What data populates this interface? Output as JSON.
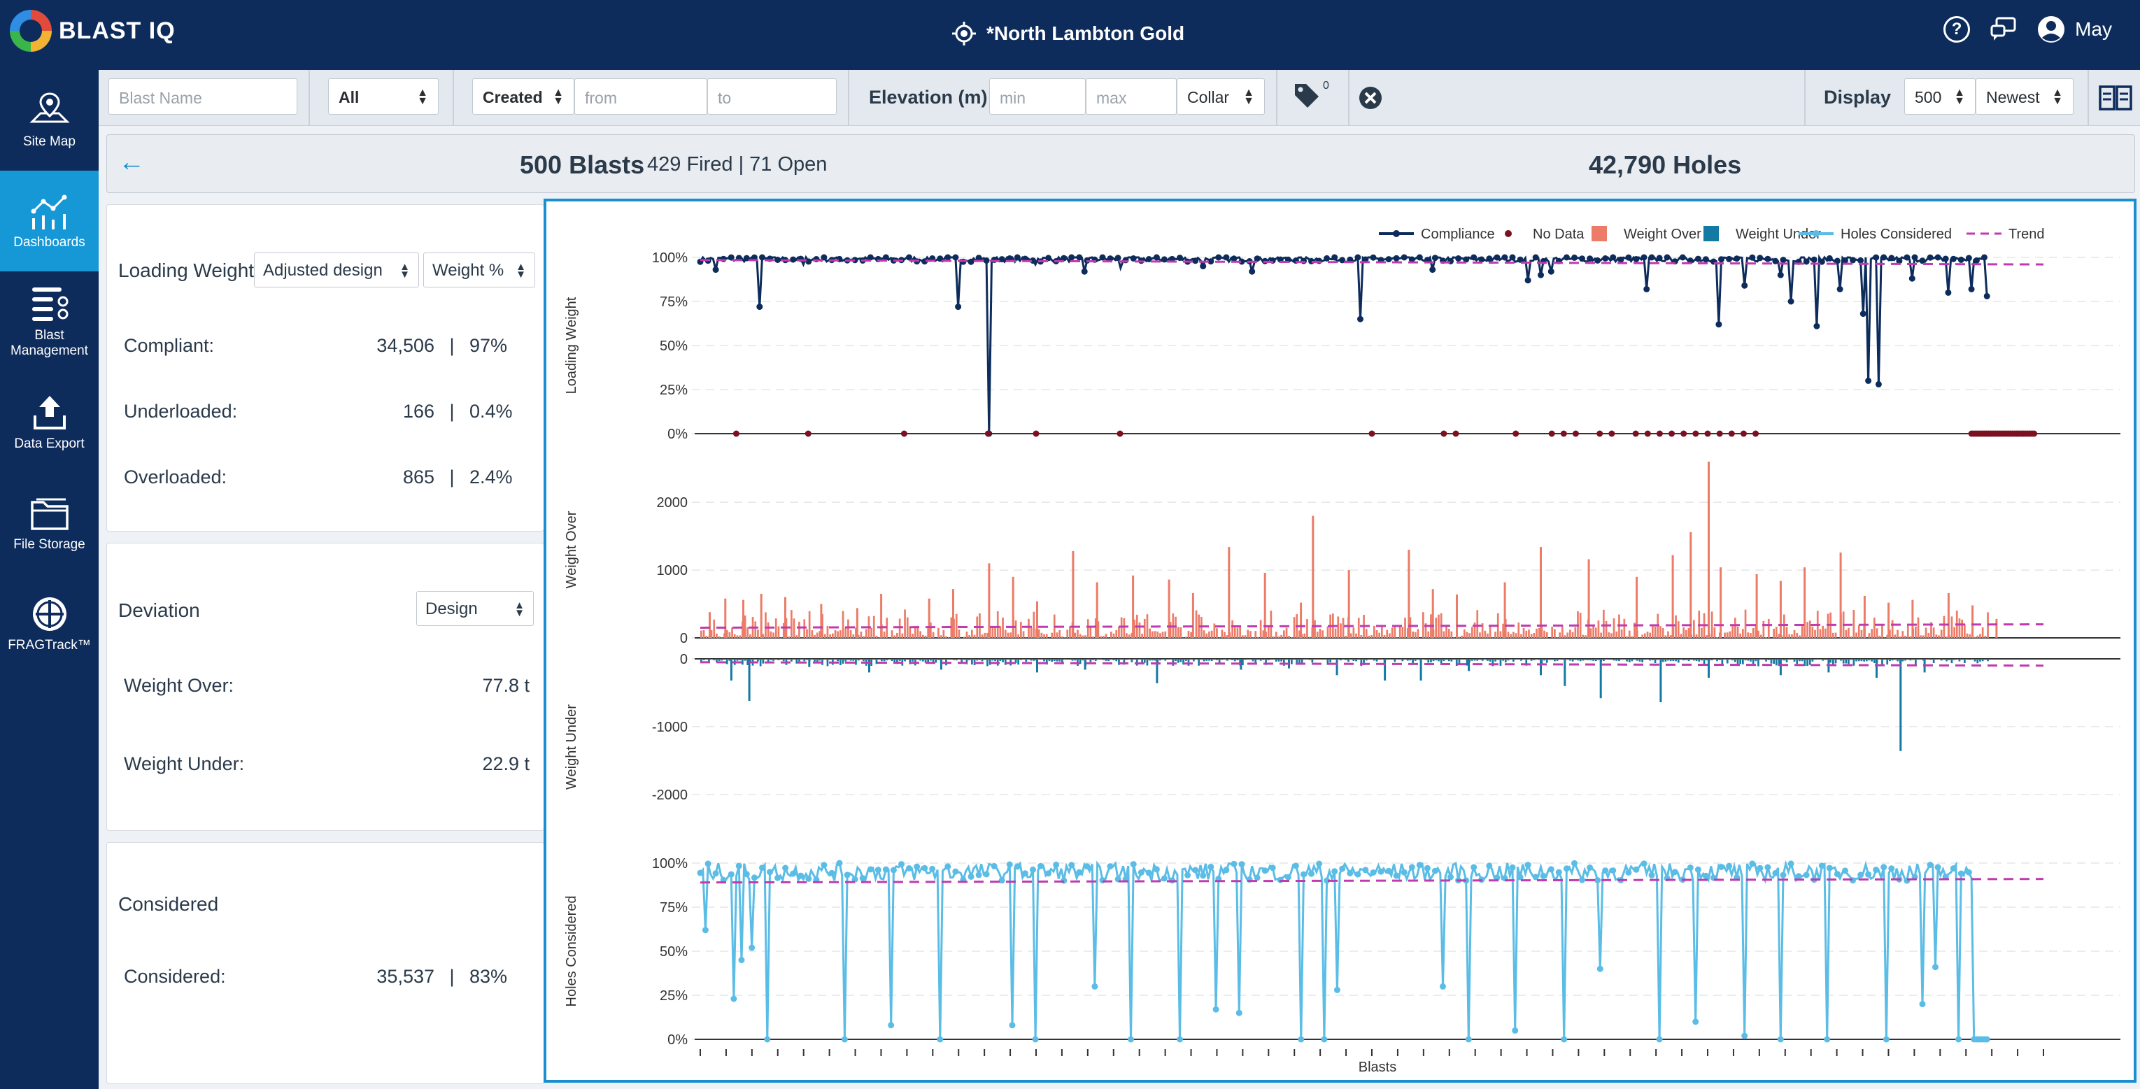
{
  "header": {
    "logo_text": "BLAST IQ",
    "site_name": "*North Lambton Gold",
    "user_name": "May",
    "help_icon": "question-circle-icon",
    "chat_icon": "chat-icon",
    "user_icon": "user-circle-icon",
    "location_icon": "crosshair-icon"
  },
  "sidebar": {
    "items": [
      {
        "label": "Site Map",
        "icon": "map-pin-icon"
      },
      {
        "label": "Dashboards",
        "icon": "dashboard-chart-icon",
        "active": true
      },
      {
        "label": "Blast Management",
        "icon": "list-settings-icon"
      },
      {
        "label": "Data Export",
        "icon": "upload-icon"
      },
      {
        "label": "File Storage",
        "icon": "folder-icon"
      },
      {
        "label": "FRAGTrack™",
        "icon": "fragtrack-icon"
      }
    ]
  },
  "filters": {
    "blast_name_placeholder": "Blast Name",
    "status_value": "All",
    "date_type": "Created",
    "from_placeholder": "from",
    "to_placeholder": "to",
    "elevation_label": "Elevation (m)",
    "min_placeholder": "min",
    "max_placeholder": "max",
    "elevation_ref": "Collar",
    "tag_count": "0",
    "display_label": "Display",
    "display_count": "500",
    "sort_value": "Newest"
  },
  "summary": {
    "blasts": "500 Blasts",
    "fired_open": "429 Fired | 71 Open",
    "holes": "42,790 Holes"
  },
  "loading_card": {
    "title": "Loading Weight",
    "design_select": "Adjusted design",
    "unit_select": "Weight %",
    "rows": [
      {
        "label": "Compliant:",
        "value": "34,506",
        "sep": "|",
        "pct": "97%"
      },
      {
        "label": "Underloaded:",
        "value": "166",
        "sep": "|",
        "pct": "0.4%"
      },
      {
        "label": "Overloaded:",
        "value": "865",
        "sep": "|",
        "pct": "2.4%"
      }
    ]
  },
  "deviation_card": {
    "title": "Deviation",
    "select": "Design",
    "rows": [
      {
        "label": "Weight Over:",
        "value": "77.8 t"
      },
      {
        "label": "Weight Under:",
        "value": "22.9 t"
      }
    ]
  },
  "considered_card": {
    "title": "Considered",
    "row": {
      "label": "Considered:",
      "value": "35,537",
      "sep": "|",
      "pct": "83%"
    }
  },
  "chart_data": {
    "type": "line",
    "xlabel": "Blasts",
    "legend": [
      "Compliance",
      "No Data",
      "Weight Over",
      "Weight Under",
      "Holes Considered",
      "Trend"
    ],
    "legend_position": "top-right",
    "colors": {
      "compliance": "#0d2c5c",
      "no_data": "#7a1020",
      "weight_over": "#ec7b67",
      "weight_under": "#1479a3",
      "holes_considered": "#5bbde6",
      "trend": "#c03ab0"
    },
    "grid": true,
    "panels": [
      {
        "ylabel": "Loading Weight",
        "yticks": [
          "100%",
          "75%",
          "50%",
          "25%",
          "0%"
        ],
        "ylim": [
          0,
          100
        ],
        "trend": [
          98.5,
          96
        ],
        "dips": [
          [
            0.013,
            93
          ],
          [
            0.05,
            72
          ],
          [
            0.085,
            96
          ],
          [
            0.24,
            0
          ],
          [
            0.215,
            72
          ],
          [
            0.28,
            96
          ],
          [
            0.32,
            92
          ],
          [
            0.35,
            94
          ],
          [
            0.42,
            95
          ],
          [
            0.46,
            92
          ],
          [
            0.55,
            65
          ],
          [
            0.61,
            93
          ],
          [
            0.69,
            87
          ],
          [
            0.71,
            92
          ],
          [
            0.7,
            90
          ],
          [
            0.79,
            82
          ],
          [
            0.85,
            62
          ],
          [
            0.87,
            84
          ],
          [
            0.91,
            75
          ],
          [
            0.93,
            61
          ],
          [
            0.97,
            68
          ],
          [
            0.975,
            30
          ],
          [
            0.982,
            28
          ],
          [
            0.9,
            90
          ],
          [
            0.95,
            82
          ],
          [
            1.01,
            88
          ],
          [
            1.04,
            80
          ],
          [
            1.06,
            82
          ],
          [
            1.1,
            86
          ],
          [
            1.12,
            78
          ]
        ],
        "no_data_x": [
          0.03,
          0.09,
          0.17,
          0.24,
          0.28,
          0.35,
          0.56,
          0.62,
          0.63,
          0.68,
          0.71,
          0.72,
          0.73,
          0.75,
          0.76,
          0.78,
          0.79,
          0.8,
          0.81,
          0.82,
          0.83,
          0.84,
          0.85,
          0.86,
          0.87,
          0.88
        ]
      },
      {
        "ylabel": "Weight Over",
        "yticks": [
          "2000",
          "1000",
          "0"
        ],
        "ylim": [
          0,
          2600
        ],
        "trend": [
          150,
          200
        ],
        "peaks": [
          [
            0.007,
            380
          ],
          [
            0.02,
            580
          ],
          [
            0.035,
            560
          ],
          [
            0.05,
            650
          ],
          [
            0.07,
            600
          ],
          [
            0.1,
            500
          ],
          [
            0.13,
            440
          ],
          [
            0.15,
            650
          ],
          [
            0.19,
            580
          ],
          [
            0.21,
            720
          ],
          [
            0.24,
            1100
          ],
          [
            0.26,
            900
          ],
          [
            0.28,
            540
          ],
          [
            0.31,
            1280
          ],
          [
            0.33,
            820
          ],
          [
            0.36,
            920
          ],
          [
            0.39,
            860
          ],
          [
            0.41,
            660
          ],
          [
            0.44,
            1340
          ],
          [
            0.47,
            960
          ],
          [
            0.5,
            520
          ],
          [
            0.51,
            1800
          ],
          [
            0.54,
            1000
          ],
          [
            0.59,
            1300
          ],
          [
            0.61,
            720
          ],
          [
            0.63,
            640
          ],
          [
            0.67,
            820
          ],
          [
            0.7,
            1340
          ],
          [
            0.74,
            1160
          ],
          [
            0.78,
            900
          ],
          [
            0.81,
            1220
          ],
          [
            0.825,
            1560
          ],
          [
            0.84,
            2600
          ],
          [
            0.85,
            1040
          ],
          [
            0.88,
            940
          ],
          [
            0.9,
            840
          ],
          [
            0.92,
            1040
          ],
          [
            0.95,
            1260
          ],
          [
            0.97,
            620
          ],
          [
            0.99,
            520
          ],
          [
            1.01,
            560
          ],
          [
            1.04,
            660
          ],
          [
            1.06,
            480
          ],
          [
            1.08,
            280
          ]
        ]
      },
      {
        "ylabel": "Weight Under",
        "yticks": [
          "0",
          "-1000",
          "-2000"
        ],
        "ylim": [
          -2600,
          0
        ],
        "trend": [
          -50,
          -100
        ],
        "dips": [
          [
            0.025,
            -320
          ],
          [
            0.04,
            -620
          ],
          [
            0.09,
            -120
          ],
          [
            0.14,
            -200
          ],
          [
            0.2,
            -160
          ],
          [
            0.28,
            -200
          ],
          [
            0.32,
            -160
          ],
          [
            0.38,
            -360
          ],
          [
            0.45,
            -160
          ],
          [
            0.49,
            -140
          ],
          [
            0.53,
            -240
          ],
          [
            0.57,
            -320
          ],
          [
            0.6,
            -320
          ],
          [
            0.64,
            -180
          ],
          [
            0.7,
            -240
          ],
          [
            0.72,
            -400
          ],
          [
            0.75,
            -580
          ],
          [
            0.8,
            -640
          ],
          [
            0.84,
            -280
          ],
          [
            0.9,
            -240
          ],
          [
            0.94,
            -200
          ],
          [
            0.98,
            -280
          ],
          [
            1.0,
            -1360
          ],
          [
            1.02,
            -200
          ]
        ]
      },
      {
        "ylabel": "Holes Considered",
        "yticks": [
          "100%",
          "75%",
          "50%",
          "25%",
          "0%"
        ],
        "ylim": [
          0,
          100
        ],
        "trend": [
          89,
          91
        ],
        "dips": [
          [
            0.004,
            62
          ],
          [
            0.027,
            23
          ],
          [
            0.035,
            45
          ],
          [
            0.042,
            52
          ],
          [
            0.055,
            0
          ],
          [
            0.12,
            0
          ],
          [
            0.16,
            8
          ],
          [
            0.2,
            0
          ],
          [
            0.26,
            8
          ],
          [
            0.28,
            0
          ],
          [
            0.33,
            30
          ],
          [
            0.36,
            0
          ],
          [
            0.4,
            0
          ],
          [
            0.43,
            17
          ],
          [
            0.45,
            15
          ],
          [
            0.5,
            0
          ],
          [
            0.52,
            0
          ],
          [
            0.53,
            28
          ],
          [
            0.62,
            30
          ],
          [
            0.64,
            0
          ],
          [
            0.68,
            5
          ],
          [
            0.72,
            0
          ],
          [
            0.75,
            40
          ],
          [
            0.8,
            0
          ],
          [
            0.83,
            10
          ],
          [
            0.87,
            2
          ],
          [
            0.9,
            0
          ],
          [
            0.94,
            0
          ],
          [
            0.99,
            0
          ],
          [
            1.02,
            20
          ],
          [
            1.03,
            41
          ],
          [
            1.05,
            0
          ]
        ]
      }
    ]
  }
}
